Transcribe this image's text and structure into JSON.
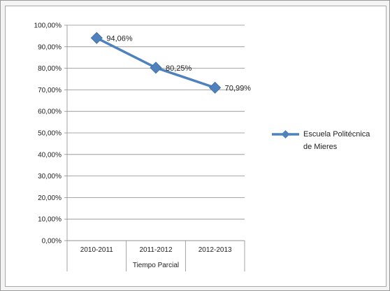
{
  "chart_data": {
    "type": "line",
    "categories": [
      "2010-2011",
      "2011-2012",
      "2012-2013"
    ],
    "series": [
      {
        "name": "Escuela Politécnica de Mieres",
        "values": [
          94.06,
          80.25,
          70.99
        ],
        "labels": [
          "94,06%",
          "80,25%",
          "70,99%"
        ],
        "color": "#4f81bd"
      }
    ],
    "y_ticks": [
      "0,00%",
      "10,00%",
      "20,00%",
      "30,00%",
      "40,00%",
      "50,00%",
      "60,00%",
      "70,00%",
      "80,00%",
      "90,00%",
      "100,00%"
    ],
    "ylim": [
      0,
      100
    ],
    "group_label": "Tiempo Parcial",
    "grid": true,
    "legend_position": "right"
  }
}
